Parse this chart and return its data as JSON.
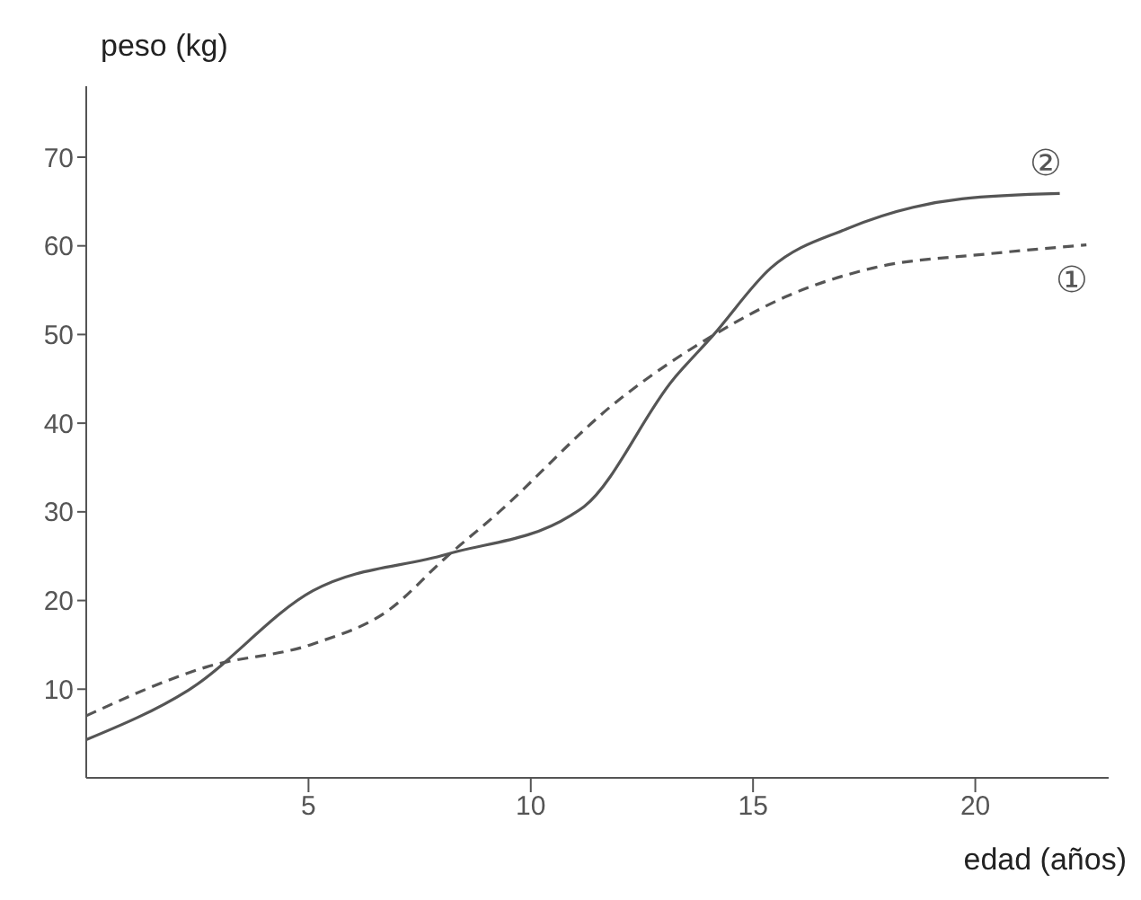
{
  "chart_data": {
    "type": "line",
    "xlabel": "edad (años)",
    "ylabel": "peso (kg)",
    "xlim": [
      0,
      23
    ],
    "ylim": [
      0,
      78
    ],
    "xticks": [
      5,
      10,
      15,
      20
    ],
    "yticks": [
      10,
      20,
      30,
      40,
      50,
      60,
      70
    ],
    "grid": false,
    "legend": false,
    "series": [
      {
        "name": "①",
        "color": "#555555",
        "line_style": "dashed",
        "x": [
          0,
          2.7,
          5.1,
          6.8,
          8.1,
          9.2,
          11.9,
          14.1,
          15.8,
          17.7,
          20.3,
          22.5
        ],
        "values": [
          7,
          12.5,
          15.1,
          18.9,
          24.9,
          29.6,
          42.3,
          49.9,
          54.4,
          57.5,
          59.1,
          60.1
        ]
      },
      {
        "name": "②",
        "color": "#555555",
        "line_style": "solid",
        "x": [
          0,
          2.3,
          5.1,
          8.1,
          10.9,
          11.2,
          13.2,
          14.1,
          15.4,
          17.1,
          19.7,
          21.9
        ],
        "values": [
          4.3,
          9.9,
          21.1,
          25.2,
          29.6,
          30.6,
          44.9,
          49.9,
          57.5,
          61.9,
          65.3,
          65.9
        ]
      }
    ]
  }
}
